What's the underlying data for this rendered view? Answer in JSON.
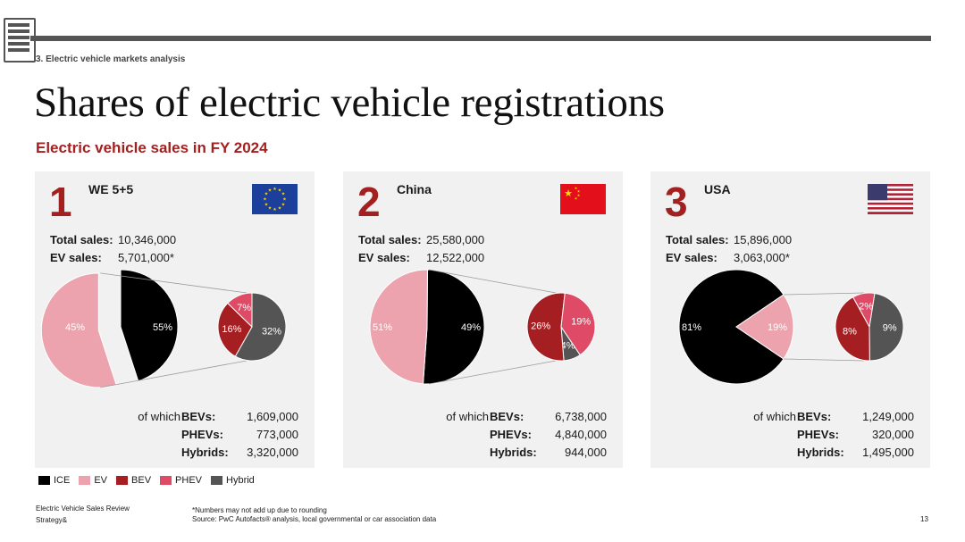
{
  "header": {
    "section": "3. Electric vehicle markets analysis",
    "title": "Shares of electric vehicle registrations",
    "subtitle": "Electric vehicle sales in FY 2024"
  },
  "colors": {
    "ICE": "#000000",
    "EV": "#eda3ad",
    "BEV": "#a41e22",
    "PHEV": "#df4b66",
    "Hybrid": "#545454",
    "accent": "#a32020"
  },
  "total_label": "Total sales:",
  "ev_label": "EV sales:",
  "of_which": "of which",
  "breakdown_labels": [
    "BEVs:",
    "PHEVs:",
    "Hybrids:"
  ],
  "panels": [
    {
      "rank": "1",
      "region": "WE 5+5",
      "total": "10,346,000",
      "ev": "5,701,000*",
      "bev": "1,609,000",
      "phev": "773,000",
      "hybrid": "3,320,000",
      "ice_label": "45%",
      "ev_label": "55%",
      "sub_labels": {
        "Hybrid": "32%",
        "BEV": "16%",
        "PHEV": "7%"
      }
    },
    {
      "rank": "2",
      "region": "China",
      "total": "25,580,000",
      "ev": "12,522,000",
      "bev": "6,738,000",
      "phev": "4,840,000",
      "hybrid": "944,000",
      "ice_label": "51%",
      "ev_label": "49%",
      "sub_labels": {
        "Hybrid": "4%",
        "BEV": "26%",
        "PHEV": "19%"
      }
    },
    {
      "rank": "3",
      "region": "USA",
      "total": "15,896,000",
      "ev": "3,063,000*",
      "bev": "1,249,000",
      "phev": "320,000",
      "hybrid": "1,495,000",
      "ice_label": "81%",
      "ev_label": "19%",
      "sub_labels": {
        "Hybrid": "9%",
        "BEV": "8%",
        "PHEV": "2%"
      }
    }
  ],
  "legend": [
    {
      "key": "ICE",
      "label": "ICE"
    },
    {
      "key": "EV",
      "label": "EV"
    },
    {
      "key": "BEV",
      "label": "BEV"
    },
    {
      "key": "PHEV",
      "label": "PHEV"
    },
    {
      "key": "Hybrid",
      "label": "Hybrid"
    }
  ],
  "footer": {
    "doc": "Electric Vehicle Sales Review",
    "brand": "Strategy&",
    "note": "*Numbers may not add up due to rounding",
    "source": "Source: PwC Autofacts® analysis, local governmental or car association data",
    "page": "13"
  },
  "chart_data": [
    {
      "type": "pie",
      "title": "WE 5+5",
      "main": [
        {
          "name": "ICE",
          "value": 45
        },
        {
          "name": "EV",
          "value": 55
        }
      ],
      "ev_breakdown": [
        {
          "name": "Hybrid",
          "value": 32
        },
        {
          "name": "BEV",
          "value": 16
        },
        {
          "name": "PHEV",
          "value": 7
        }
      ]
    },
    {
      "type": "pie",
      "title": "China",
      "main": [
        {
          "name": "ICE",
          "value": 51
        },
        {
          "name": "EV",
          "value": 49
        }
      ],
      "ev_breakdown": [
        {
          "name": "Hybrid",
          "value": 4
        },
        {
          "name": "BEV",
          "value": 26
        },
        {
          "name": "PHEV",
          "value": 19
        }
      ]
    },
    {
      "type": "pie",
      "title": "USA",
      "main": [
        {
          "name": "ICE",
          "value": 81
        },
        {
          "name": "EV",
          "value": 19
        }
      ],
      "ev_breakdown": [
        {
          "name": "Hybrid",
          "value": 9
        },
        {
          "name": "BEV",
          "value": 8
        },
        {
          "name": "PHEV",
          "value": 2
        }
      ]
    }
  ]
}
